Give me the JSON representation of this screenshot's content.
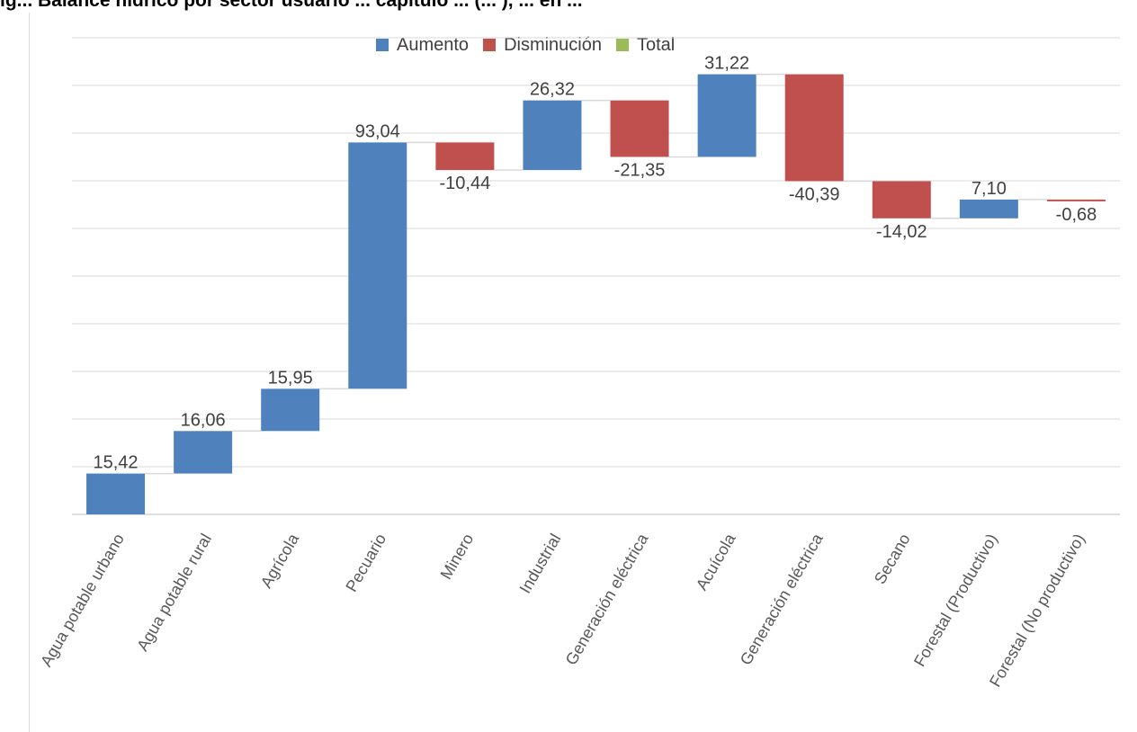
{
  "title": "ig...  Balance hídrico por sector usuario ... capítulo ... (... ), ... en ...",
  "legend": [
    {
      "label": "Aumento",
      "color": "#4f81bd"
    },
    {
      "label": "Disminución",
      "color": "#c0504d"
    },
    {
      "label": "Total",
      "color": "#9bbb59"
    }
  ],
  "chart_data": {
    "type": "bar",
    "subtype": "waterfall",
    "title": "",
    "xlabel": "",
    "ylabel": "",
    "categories": [
      "Agua potable urbano",
      "Agua potable rural",
      "Agrícola",
      "Pecuario",
      "Minero",
      "Industrial",
      "Generación eléctrica",
      "Acuícola",
      "Generación eléctrica",
      "Secano",
      "Forestal (Productivo)",
      "Forestal (No productivo)"
    ],
    "values": [
      15.42,
      16.06,
      15.95,
      93.04,
      -10.44,
      26.32,
      -21.35,
      31.22,
      -40.39,
      -14.02,
      7.1,
      -0.68
    ],
    "data_labels": [
      "15,42",
      "16,06",
      "15,95",
      "93,04",
      "-10,44",
      "26,32",
      "-21,35",
      "31,22",
      "-40,39",
      "-14,02",
      "7,10",
      "-0,68"
    ],
    "series": [
      {
        "name": "Aumento"
      },
      {
        "name": "Disminución"
      },
      {
        "name": "Total"
      }
    ],
    "ylim": [
      0,
      180
    ],
    "grid": true,
    "gridlines": 10,
    "legend_position": "top",
    "connector_color": "#d9d9d9"
  }
}
